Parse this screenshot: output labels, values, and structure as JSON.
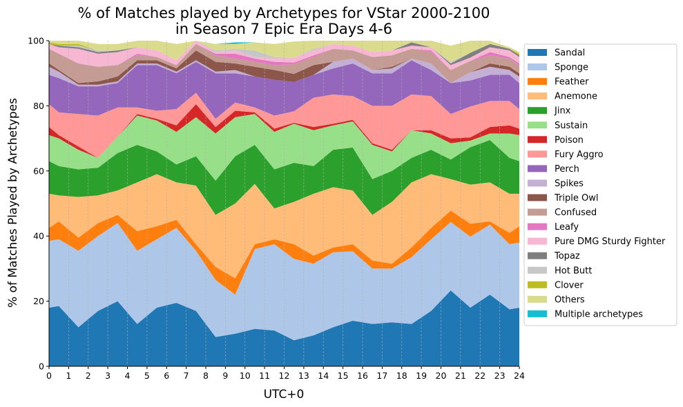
{
  "chart_data": {
    "type": "area",
    "stacked": true,
    "title": [
      "% of Matches played by Archetypes for VStar 2000-2100",
      "in Season 7 Epic Era Days 4-6"
    ],
    "xlabel": "UTC+0",
    "ylabel": "% of Matches Played by Archetypes",
    "xlim": [
      0,
      24
    ],
    "ylim": [
      0,
      100
    ],
    "x_ticks": [
      0,
      1,
      2,
      3,
      4,
      5,
      6,
      7,
      8,
      9,
      10,
      11,
      12,
      13,
      14,
      15,
      16,
      17,
      18,
      19,
      20,
      21,
      22,
      23,
      24
    ],
    "y_ticks": [
      0,
      20,
      40,
      60,
      80,
      100
    ],
    "grid": "vertical dashed",
    "legend_position": "outside right",
    "x": [
      0,
      0.5,
      1.5,
      2.5,
      3.5,
      4.5,
      5.5,
      6.5,
      7.5,
      8.5,
      9.5,
      10.5,
      11.5,
      12.5,
      13.5,
      14.5,
      15.5,
      16.5,
      17.5,
      18.5,
      19.5,
      20.5,
      21.5,
      22.5,
      23.5,
      24
    ],
    "series": [
      {
        "name": "Sandal",
        "color": "#1f77b4",
        "values": [
          18,
          18.5,
          12,
          17,
          20,
          13,
          18,
          19.5,
          17,
          9,
          10,
          11.5,
          11,
          8,
          9.5,
          12,
          14,
          13,
          13.5,
          13,
          17,
          23.3,
          18,
          22,
          17.5,
          18
        ]
      },
      {
        "name": "Sponge",
        "color": "#aec7e8",
        "values": [
          20.5,
          20.5,
          23.5,
          23,
          24,
          22.5,
          21,
          23,
          18.5,
          17.5,
          12,
          24.5,
          26.5,
          25,
          22,
          23,
          21.3,
          17,
          16.5,
          20.5,
          22,
          21,
          21.8,
          21.5,
          20,
          20
        ]
      },
      {
        "name": "Feather",
        "color": "#ff7f0e",
        "values": [
          4,
          5.5,
          4,
          4,
          2.5,
          6,
          4,
          2.5,
          2,
          4,
          5,
          1.5,
          1.5,
          4.5,
          2.5,
          1.5,
          2.2,
          2.5,
          1.5,
          3,
          3.5,
          3.5,
          4,
          1,
          3.5,
          5
        ]
      },
      {
        "name": "Anemone",
        "color": "#ffbb78",
        "values": [
          10.5,
          8,
          12.5,
          8.5,
          7.5,
          15,
          16,
          11.5,
          18,
          16,
          23,
          18.5,
          9.5,
          13,
          19,
          18.5,
          16.5,
          14,
          19,
          20,
          16.5,
          9.7,
          12,
          12,
          12,
          10
        ]
      },
      {
        "name": "Jinx",
        "color": "#2ca02c",
        "values": [
          10,
          9,
          8.5,
          8.5,
          11.5,
          11.5,
          7,
          5.5,
          9,
          10.5,
          14.5,
          12,
          12,
          12,
          8.5,
          11.5,
          13.2,
          11,
          9.5,
          7.5,
          7.5,
          6,
          11.5,
          13,
          11,
          10
        ]
      },
      {
        "name": "Sustain",
        "color": "#98df8a",
        "values": [
          8,
          8.5,
          6,
          3,
          5,
          9,
          9.5,
          10,
          12,
          14.5,
          12,
          9.5,
          11.5,
          12,
          11,
          7.5,
          8,
          10.5,
          6,
          8.5,
          5,
          5,
          2,
          2,
          7.5,
          8
        ]
      },
      {
        "name": "Poison",
        "color": "#d62728",
        "values": [
          2.5,
          1,
          1,
          0,
          0,
          0.5,
          0.5,
          2,
          4,
          2,
          2,
          0.5,
          1,
          0.3,
          1,
          0.5,
          0.5,
          0.5,
          0.5,
          0,
          1,
          1.5,
          1,
          2,
          2.5,
          2
        ]
      },
      {
        "name": "Fury Aggro",
        "color": "#ff9896",
        "values": [
          7,
          7,
          10,
          13,
          9,
          2,
          2.5,
          5,
          3.5,
          2.5,
          2.5,
          1.5,
          4,
          3.5,
          9,
          9,
          7.3,
          11.5,
          13.5,
          11,
          10.5,
          7.5,
          9.5,
          8,
          7.5,
          6
        ]
      },
      {
        "name": "Perch",
        "color": "#9467bd",
        "values": [
          9,
          10.5,
          8.5,
          9,
          7.5,
          13,
          14,
          11,
          9.5,
          14,
          9,
          9.5,
          11,
          9,
          7,
          8,
          10,
          10,
          10,
          10.5,
          8,
          9.5,
          8,
          8,
          8,
          8
        ]
      },
      {
        "name": "Spikes",
        "color": "#c5b0d5",
        "values": [
          2.5,
          2,
          0.5,
          0.5,
          0.5,
          0.5,
          0.5,
          0.5,
          0.5,
          0.5,
          1,
          0,
          0,
          0,
          0,
          2,
          1.5,
          1,
          1.5,
          0.5,
          2,
          0,
          2.5,
          2.5,
          1.5,
          2
        ]
      },
      {
        "name": "Triple Owl",
        "color": "#8c564b",
        "values": [
          1,
          0.5,
          0.5,
          1,
          1.5,
          1,
          1,
          1,
          3,
          3,
          2,
          3,
          3,
          2.5,
          3,
          0,
          0,
          0,
          0.5,
          0,
          0,
          0,
          0,
          1,
          1,
          1
        ]
      },
      {
        "name": "Confused",
        "color": "#c49c94",
        "values": [
          4.5,
          5,
          6,
          4.5,
          3.5,
          1.5,
          1,
          1,
          2,
          2,
          1.5,
          1.5,
          1.5,
          3,
          2.5,
          4,
          2.5,
          4,
          3.5,
          3,
          3.5,
          4,
          3.5,
          2.5,
          2.5,
          2.5
        ]
      },
      {
        "name": "Leafy",
        "color": "#e377c2",
        "values": [
          0,
          0,
          0,
          0,
          0,
          0.5,
          0,
          0,
          0,
          0.5,
          1.5,
          1,
          1,
          0.5,
          0.5,
          0,
          0,
          0,
          0,
          0,
          0.5,
          0,
          0,
          1,
          0.5,
          0.5
        ]
      },
      {
        "name": "Pure DMG Sturdy Fighter",
        "color": "#f7b6d2",
        "values": [
          1.5,
          2,
          4.5,
          4,
          4,
          2,
          2,
          1.5,
          1,
          0.5,
          1,
          0.5,
          1,
          1.5,
          1.5,
          1.5,
          1.5,
          1.5,
          1.5,
          1,
          1,
          1.5,
          1,
          1.5,
          2,
          2
        ]
      },
      {
        "name": "Topaz",
        "color": "#7f7f7f",
        "values": [
          0,
          0.5,
          0.5,
          0.5,
          0.5,
          0,
          0,
          0,
          0,
          0,
          0,
          0,
          0,
          0,
          0,
          0,
          0,
          0,
          0,
          1,
          0,
          0.5,
          1.5,
          1,
          0.5,
          0.5
        ]
      },
      {
        "name": "Hot Butt",
        "color": "#c7c7c7",
        "values": [
          0,
          0,
          0.5,
          0.5,
          0,
          0,
          0,
          0,
          0.5,
          0.5,
          0.5,
          2,
          0.5,
          0,
          0.5,
          0,
          0,
          0,
          0,
          0,
          0,
          0.5,
          0,
          0,
          0,
          0
        ]
      },
      {
        "name": "Clover",
        "color": "#bcbd22",
        "values": [
          0.5,
          0.5,
          0.5,
          0,
          0,
          0,
          0,
          0,
          0,
          0,
          0,
          0,
          0,
          0,
          0,
          0,
          0,
          0,
          0,
          0,
          0,
          0,
          0,
          0,
          0,
          0.5
        ]
      },
      {
        "name": "Others",
        "color": "#dbdb8d",
        "values": [
          0.5,
          1,
          2.5,
          2,
          2,
          2,
          3,
          5,
          1.5,
          2,
          1.5,
          2.5,
          4,
          5,
          4,
          1,
          1.5,
          3.5,
          3,
          2.5,
          2,
          5,
          4.5,
          1.5,
          0.5,
          0.5
        ]
      },
      {
        "name": "Multiple archetypes",
        "color": "#17becf",
        "values": [
          0,
          0,
          0,
          0,
          0,
          0,
          0,
          0,
          0,
          0,
          0.5,
          0,
          0,
          0,
          0,
          0.5,
          0,
          0,
          0,
          0,
          0,
          0,
          0,
          0,
          0,
          0
        ]
      }
    ]
  }
}
